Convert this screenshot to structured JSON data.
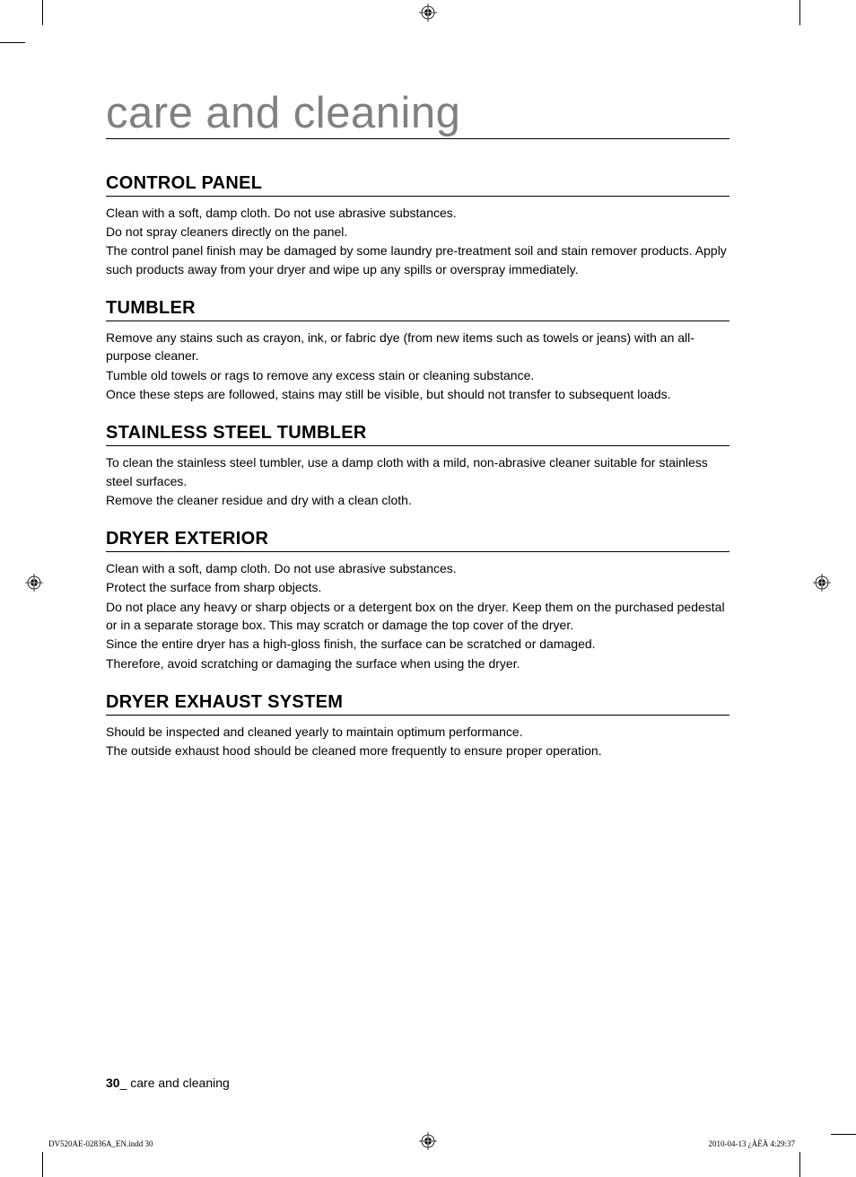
{
  "page": {
    "title": "care and cleaning",
    "page_number": "30",
    "footer_label": "care and cleaning",
    "print_meta_left": "DV520AE-02836A_EN.indd   30",
    "print_meta_right": "2010-04-13   ¿ÀÈÄ 4:29:37"
  },
  "sections": [
    {
      "heading": "CONTROL PANEL",
      "paragraphs": [
        "Clean with a soft, damp cloth. Do not use abrasive substances.",
        "Do not spray cleaners directly on the panel.",
        "The control panel finish may be damaged by some laundry pre-treatment soil and stain remover products. Apply such products away from your dryer and wipe up any spills or overspray immediately."
      ]
    },
    {
      "heading": "TUMBLER",
      "paragraphs": [
        "Remove any stains such as crayon, ink, or fabric dye (from new items such as towels or jeans) with an all-purpose cleaner.",
        "Tumble old towels or rags to remove any excess stain or cleaning substance.",
        "Once these steps are followed, stains may still be visible, but should not transfer to subsequent loads."
      ]
    },
    {
      "heading": "STAINLESS STEEL TUMBLER",
      "paragraphs": [
        "To clean the stainless steel tumbler, use a damp cloth with a mild, non-abrasive cleaner suitable for stainless steel surfaces.",
        "Remove the cleaner residue and dry with a clean cloth."
      ]
    },
    {
      "heading": "DRYER EXTERIOR",
      "paragraphs": [
        "Clean with a soft, damp cloth. Do not use abrasive substances.",
        "Protect the surface from sharp objects.",
        "Do not place any heavy or sharp objects or a detergent box on the dryer. Keep them on the purchased pedestal or in a separate storage box. This may scratch or damage the top cover of the dryer.",
        "Since the entire dryer has a high-gloss finish, the surface can be scratched or damaged.",
        "Therefore, avoid scratching or damaging the surface when using the dryer."
      ]
    },
    {
      "heading": "DRYER EXHAUST SYSTEM",
      "paragraphs": [
        "Should be inspected and cleaned yearly to maintain optimum performance.",
        "The outside exhaust hood should be cleaned more frequently to ensure proper operation."
      ]
    }
  ]
}
